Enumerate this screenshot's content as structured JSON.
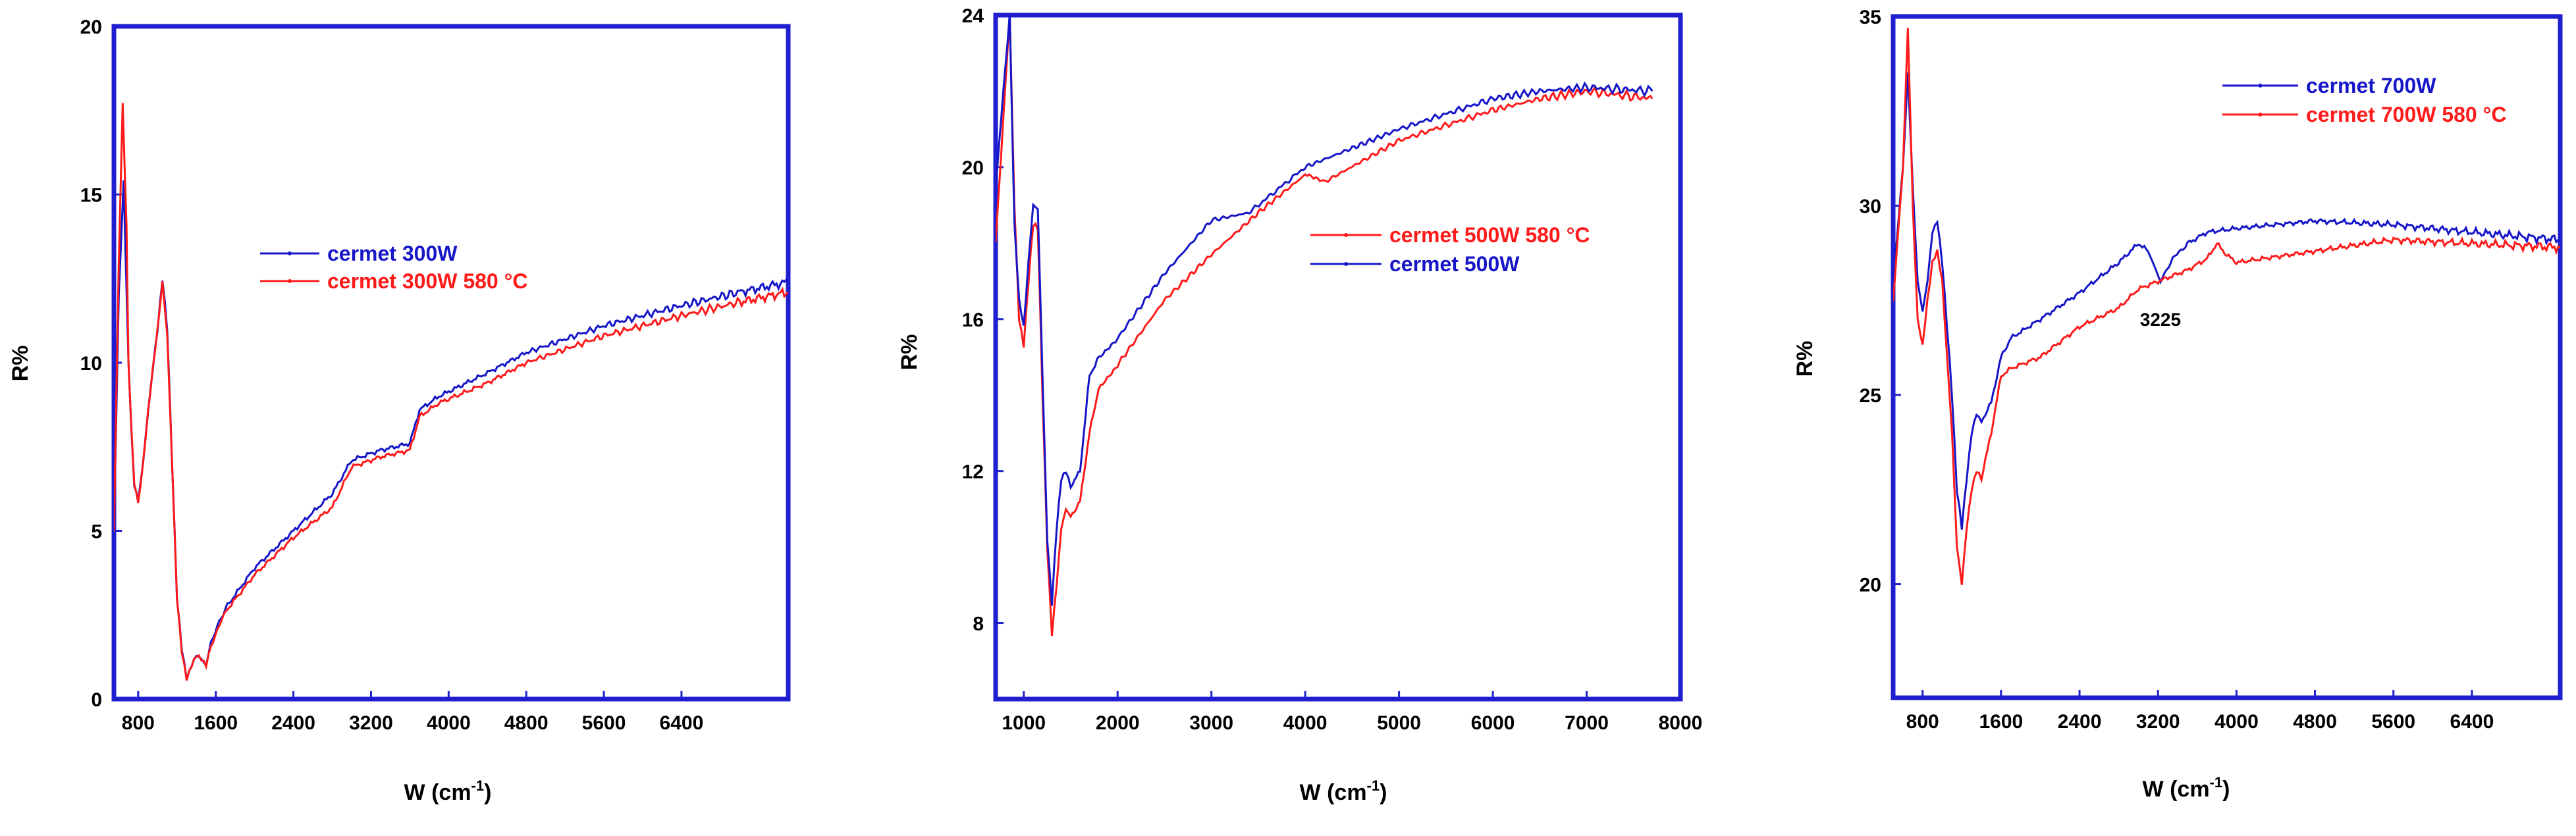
{
  "colors": {
    "frame": "#1f1fd0",
    "blue": "#1616c8",
    "red": "#ff1a1a"
  },
  "chart_data": [
    {
      "type": "line",
      "xlim": [
        550,
        7500
      ],
      "ylim": [
        0,
        20
      ],
      "xticks": [
        800,
        1600,
        2400,
        3200,
        4000,
        4800,
        5600,
        6400
      ],
      "yticks": [
        0,
        5,
        10,
        15,
        20
      ],
      "xlabel": "W (cm",
      "xlabel_sup": "-1",
      "xlabel_tail": ")",
      "ylabel": "R%",
      "legend_position": "center",
      "series": [
        {
          "name": "cermet 300W",
          "color": "#1616c8",
          "x": [
            550,
            600,
            650,
            700,
            730,
            760,
            800,
            850,
            900,
            950,
            1000,
            1050,
            1100,
            1150,
            1200,
            1250,
            1300,
            1350,
            1400,
            1450,
            1500,
            1550,
            1700,
            2000,
            2400,
            2800,
            3000,
            3300,
            3600,
            3700,
            3900,
            4400,
            4800,
            5600,
            6400,
            7000,
            7500
          ],
          "y": [
            5.0,
            12.0,
            15.4,
            10.0,
            8.0,
            6.4,
            5.9,
            7.0,
            8.5,
            9.8,
            11.0,
            12.5,
            11.0,
            7.0,
            3.0,
            1.5,
            0.6,
            1.0,
            1.3,
            1.2,
            1.0,
            1.7,
            2.7,
            3.9,
            5.0,
            6.1,
            7.1,
            7.4,
            7.6,
            8.6,
            9.0,
            9.7,
            10.3,
            11.1,
            11.7,
            12.1,
            12.4
          ]
        },
        {
          "name": "cermet 300W 580 °C",
          "color": "#ff1a1a",
          "x": [
            550,
            600,
            640,
            680,
            700,
            730,
            760,
            800,
            850,
            900,
            950,
            1000,
            1050,
            1100,
            1150,
            1200,
            1250,
            1300,
            1350,
            1400,
            1450,
            1500,
            1550,
            1700,
            2000,
            2400,
            2800,
            3000,
            3300,
            3600,
            3700,
            3900,
            4400,
            4800,
            5600,
            6400,
            7000,
            7500
          ],
          "y": [
            5.0,
            13.0,
            17.7,
            14.0,
            10.0,
            8.0,
            6.4,
            5.8,
            7.0,
            8.5,
            9.8,
            11.0,
            12.4,
            10.8,
            7.0,
            3.0,
            1.4,
            0.6,
            1.0,
            1.3,
            1.2,
            1.0,
            1.6,
            2.6,
            3.7,
            4.8,
            5.7,
            6.9,
            7.2,
            7.4,
            8.4,
            8.8,
            9.4,
            10.0,
            10.8,
            11.4,
            11.8,
            12.1
          ]
        }
      ]
    },
    {
      "type": "line",
      "xlim": [
        700,
        8000
      ],
      "ylim": [
        6,
        24
      ],
      "xticks": [
        1000,
        2000,
        3000,
        4000,
        5000,
        6000,
        7000,
        8000
      ],
      "yticks": [
        8,
        12,
        16,
        20,
        24
      ],
      "xlabel": "W (cm",
      "xlabel_sup": "-1",
      "xlabel_tail": ")",
      "ylabel": "R%",
      "legend_position": "center",
      "series": [
        {
          "name": "cermet 500W 580 °C",
          "color": "#ff1a1a",
          "x": [
            700,
            800,
            850,
            900,
            950,
            1000,
            1050,
            1100,
            1150,
            1200,
            1250,
            1300,
            1350,
            1400,
            1450,
            1500,
            1600,
            1700,
            1800,
            2000,
            2500,
            3000,
            3500,
            4000,
            4200,
            5000,
            6000,
            6500,
            7000,
            7700
          ],
          "y": [
            18.0,
            22.0,
            24.0,
            19.0,
            16.0,
            15.3,
            17.0,
            18.5,
            18.4,
            14.0,
            10.0,
            7.7,
            9.0,
            10.5,
            11.0,
            10.8,
            11.2,
            13.0,
            14.2,
            14.8,
            16.5,
            17.7,
            18.8,
            19.8,
            19.6,
            20.7,
            21.5,
            21.8,
            22.0,
            21.8
          ]
        },
        {
          "name": "cermet 500W",
          "color": "#1616c8",
          "x": [
            700,
            800,
            850,
            900,
            950,
            1000,
            1050,
            1100,
            1150,
            1200,
            1250,
            1300,
            1350,
            1400,
            1450,
            1500,
            1600,
            1700,
            1800,
            2000,
            2500,
            3000,
            3400,
            4000,
            4500,
            5000,
            6000,
            6500,
            7000,
            7700
          ],
          "y": [
            19.5,
            22.5,
            24.0,
            18.5,
            16.5,
            15.8,
            17.5,
            19.0,
            18.9,
            14.5,
            10.2,
            8.5,
            10.5,
            11.8,
            12.0,
            11.6,
            12.0,
            14.5,
            15.0,
            15.5,
            17.2,
            18.6,
            18.8,
            20.0,
            20.5,
            21.0,
            21.8,
            22.0,
            22.1,
            22.0
          ]
        }
      ]
    },
    {
      "type": "line",
      "xlim": [
        500,
        7300
      ],
      "ylim": [
        17,
        35
      ],
      "xticks": [
        800,
        1600,
        2400,
        3200,
        4000,
        4800,
        5600,
        6400
      ],
      "yticks": [
        20,
        25,
        30,
        35
      ],
      "xlabel": "W (cm",
      "xlabel_sup": "-1",
      "xlabel_tail": ")",
      "ylabel": "R%",
      "legend_position": "top-right",
      "annotation": {
        "text": "3225",
        "x": 3225,
        "y": 27.0
      },
      "series": [
        {
          "name": "cermet 700W",
          "color": "#1616c8",
          "x": [
            500,
            600,
            650,
            700,
            750,
            800,
            850,
            900,
            950,
            1000,
            1050,
            1100,
            1150,
            1200,
            1250,
            1300,
            1350,
            1400,
            1500,
            1600,
            1700,
            2000,
            2400,
            2800,
            3000,
            3100,
            3225,
            3350,
            3500,
            3700,
            4000,
            4800,
            5600,
            6400,
            7300
          ],
          "y": [
            28.0,
            31.0,
            33.5,
            30.5,
            28.0,
            27.2,
            28.0,
            29.3,
            29.6,
            28.5,
            26.8,
            25.0,
            22.5,
            21.5,
            22.8,
            24.0,
            24.5,
            24.3,
            24.8,
            26.0,
            26.5,
            27.0,
            27.7,
            28.5,
            29.0,
            28.8,
            28.0,
            28.6,
            29.0,
            29.3,
            29.4,
            29.6,
            29.5,
            29.3,
            29.1
          ]
        },
        {
          "name": "cermet 700W 580 °C",
          "color": "#ff1a1a",
          "x": [
            500,
            600,
            650,
            700,
            750,
            800,
            850,
            900,
            950,
            1000,
            1050,
            1100,
            1150,
            1200,
            1250,
            1300,
            1350,
            1400,
            1500,
            1600,
            1700,
            2000,
            2400,
            2800,
            3000,
            3200,
            3500,
            3700,
            3800,
            3900,
            4000,
            4800,
            5600,
            6400,
            7300
          ],
          "y": [
            27.5,
            31.0,
            34.7,
            30.0,
            27.0,
            26.3,
            27.5,
            28.5,
            28.8,
            28.0,
            26.0,
            24.0,
            21.0,
            20.0,
            21.5,
            22.5,
            23.0,
            22.8,
            24.0,
            25.5,
            25.7,
            26.0,
            26.8,
            27.3,
            27.8,
            28.0,
            28.3,
            28.6,
            29.0,
            28.7,
            28.5,
            28.8,
            29.1,
            29.0,
            28.9
          ]
        }
      ]
    }
  ]
}
